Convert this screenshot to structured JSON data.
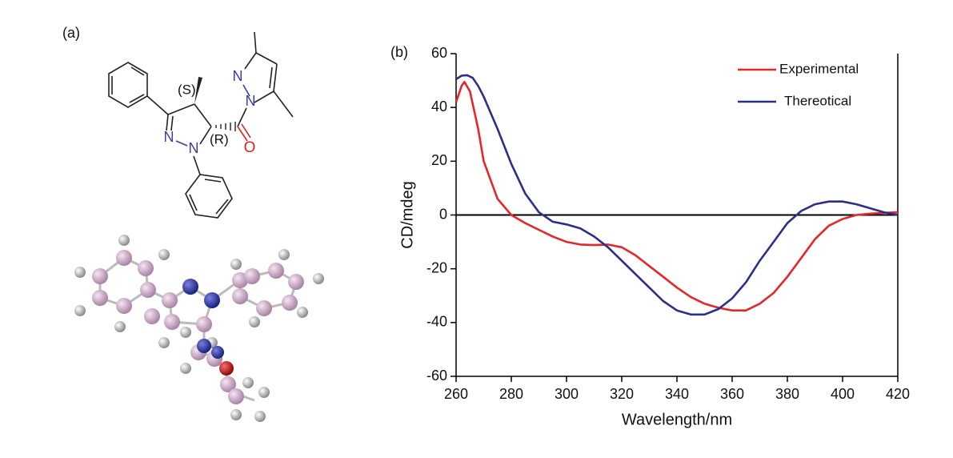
{
  "panel_a": {
    "label": "(a)",
    "stereo_labels": [
      "(S)",
      "(R)"
    ],
    "atoms": [
      "N",
      "N",
      "N",
      "N",
      "O"
    ]
  },
  "panel_b_label": "(b)",
  "chart_data": {
    "type": "line",
    "x_label": "Wavelength/nm",
    "y_label": "CD/mdeg",
    "xlim": [
      260,
      420
    ],
    "xticks": [
      260,
      280,
      300,
      320,
      340,
      360,
      380,
      400,
      420
    ],
    "ylim": [
      -60,
      60
    ],
    "yticks": [
      -60,
      -40,
      -20,
      0,
      20,
      40,
      60
    ],
    "zero_line": true,
    "legend": "upper right",
    "series": [
      {
        "name": "Experimental",
        "color": "#e8262a",
        "x": [
          260,
          262,
          263,
          265,
          268,
          270,
          275,
          280,
          285,
          290,
          295,
          300,
          305,
          310,
          315,
          320,
          325,
          330,
          335,
          340,
          345,
          350,
          355,
          360,
          365,
          370,
          375,
          380,
          385,
          390,
          395,
          400,
          405,
          410,
          415,
          420
        ],
        "values": [
          42,
          48,
          49.5,
          46,
          32,
          20,
          6,
          0,
          -3,
          -5.5,
          -8,
          -10,
          -11,
          -11.2,
          -11,
          -12,
          -15,
          -19,
          -23,
          -27,
          -30.5,
          -33,
          -34.5,
          -35.5,
          -35.5,
          -33,
          -29,
          -23,
          -16,
          -9,
          -4,
          -1.5,
          0,
          0.5,
          0.8,
          1
        ]
      },
      {
        "name": "Thereotical",
        "color": "#2b2f8a",
        "x": [
          260,
          262,
          264,
          266,
          268,
          270,
          275,
          280,
          285,
          290,
          295,
          300,
          305,
          310,
          315,
          320,
          325,
          330,
          335,
          340,
          345,
          350,
          355,
          360,
          365,
          370,
          375,
          380,
          385,
          390,
          395,
          400,
          405,
          410,
          415,
          420
        ],
        "values": [
          50.5,
          51.8,
          52,
          51,
          48,
          44,
          32,
          19,
          8,
          1,
          -2.5,
          -3.5,
          -5,
          -8,
          -12,
          -17,
          -22,
          -27,
          -32,
          -35.5,
          -37,
          -37,
          -35,
          -31,
          -25,
          -17,
          -10,
          -3,
          1.5,
          4,
          5,
          5,
          4,
          2.5,
          1,
          0
        ]
      }
    ]
  }
}
